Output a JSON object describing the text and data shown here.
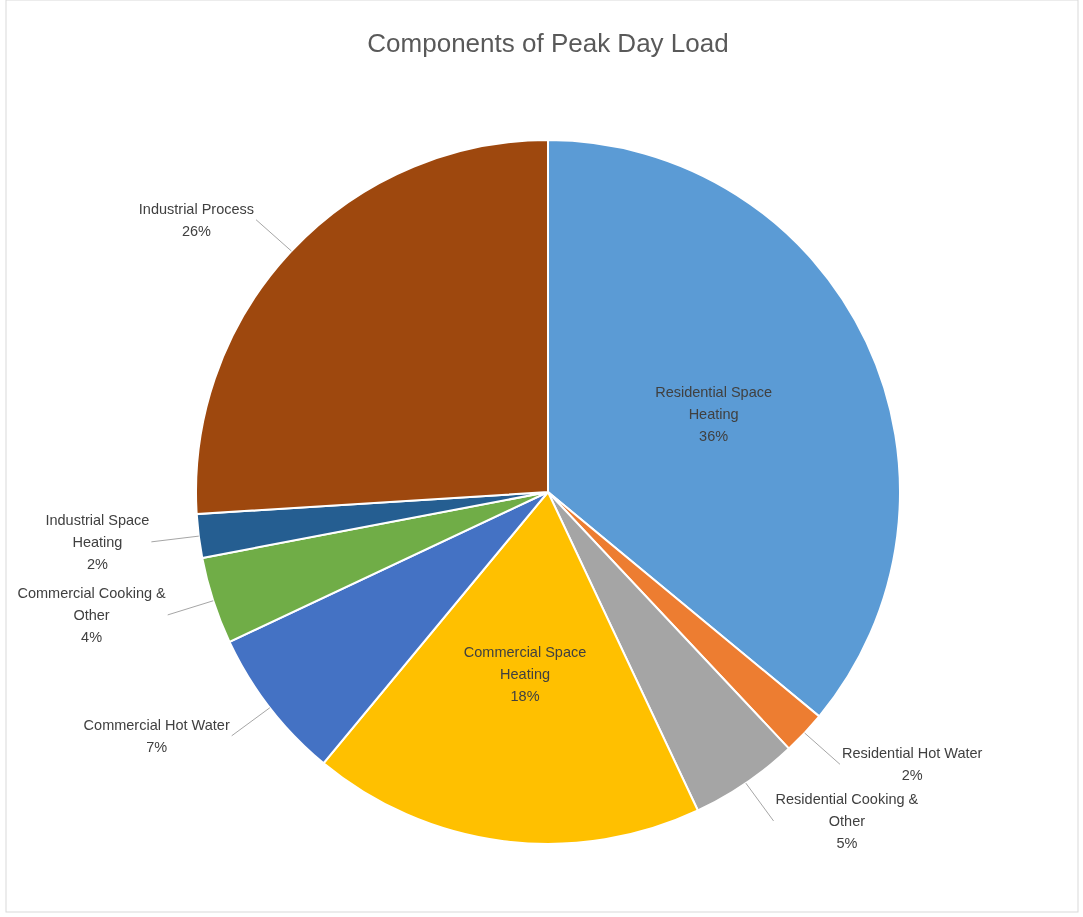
{
  "chart_data": {
    "type": "pie",
    "title": "Components of Peak Day Load",
    "categories": [
      "Residential Space Heating",
      "Residential Hot Water",
      "Residential Cooking & Other",
      "Commercial Space Heating",
      "Commercial Hot Water",
      "Commercial Cooking & Other",
      "Industrial Space Heating",
      "Industrial Process"
    ],
    "values": [
      36,
      2,
      5,
      18,
      7,
      4,
      2,
      26
    ],
    "value_labels": [
      "36%",
      "2%",
      "5%",
      "18%",
      "7%",
      "4%",
      "2%",
      "26%"
    ],
    "colors": [
      "#5b9bd5",
      "#ed7d31",
      "#a5a5a5",
      "#ffc000",
      "#4472c4",
      "#70ad47",
      "#255e91",
      "#9e480e"
    ],
    "legend": false
  }
}
